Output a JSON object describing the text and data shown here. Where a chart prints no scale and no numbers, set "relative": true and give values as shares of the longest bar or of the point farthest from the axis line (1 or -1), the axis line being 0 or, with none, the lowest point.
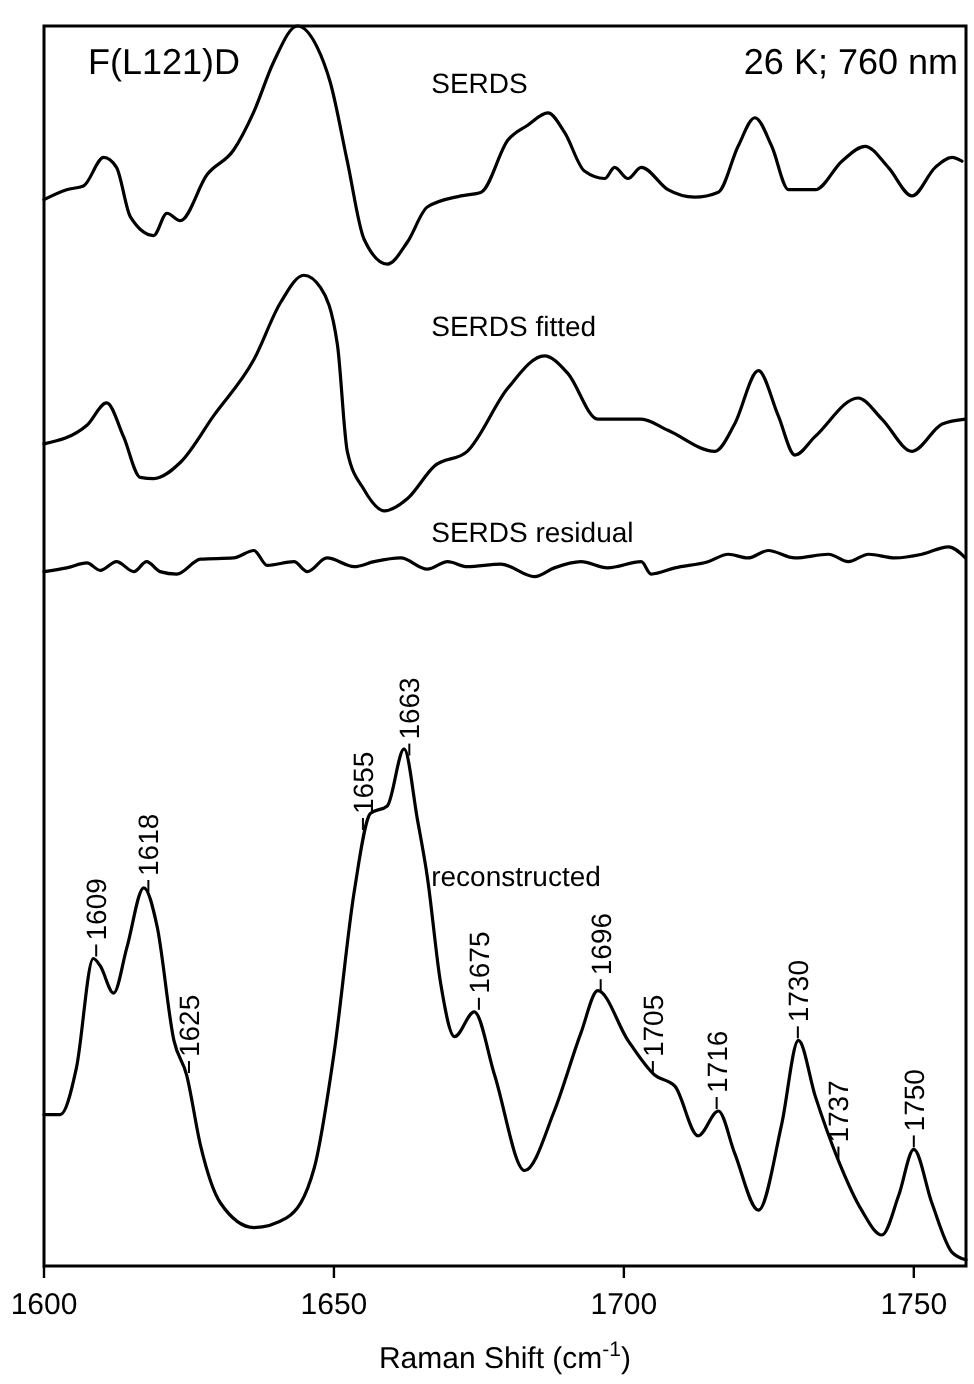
{
  "chart_data": {
    "type": "line",
    "relative": true,
    "xlabel": "Raman Shift (cm$^{-1}$)",
    "xlim": [
      1600,
      1759
    ],
    "xticks": [
      1600,
      1650,
      1700,
      1750
    ],
    "tick_labels": "x",
    "legend": false,
    "grid": false,
    "marker": "none",
    "line_style": "solid",
    "annotations": [
      "F(L121)D",
      "26 K; 760 nm",
      {
        "text": "1609",
        "x": 1609,
        "y": 0.248
      },
      {
        "text": "1618",
        "x": 1618,
        "y": 0.3
      },
      {
        "text": "1625",
        "x": 1625,
        "y": 0.154
      },
      {
        "text": "1655",
        "x": 1655,
        "y": 0.35
      },
      {
        "text": "1663",
        "x": 1663,
        "y": 0.41
      },
      {
        "text": "1675",
        "x": 1675,
        "y": 0.205
      },
      {
        "text": "1696",
        "x": 1696,
        "y": 0.22
      },
      {
        "text": "1705",
        "x": 1705,
        "y": 0.154
      },
      {
        "text": "1716",
        "x": 1716,
        "y": 0.125
      },
      {
        "text": "1730",
        "x": 1730,
        "y": 0.182
      },
      {
        "text": "1737",
        "x": 1737,
        "y": 0.085
      },
      {
        "text": "1750",
        "x": 1750,
        "y": 0.094
      }
    ],
    "series": [
      {
        "name": "SERDS",
        "color": "#000000",
        "x": [
          1600,
          1603.9,
          1606.8,
          1610.3,
          1612.5,
          1614.9,
          1618.9,
          1621.2,
          1623.5,
          1628.1,
          1632.7,
          1636.2,
          1639.6,
          1643.7,
          1647.1,
          1649.4,
          1652.3,
          1655.2,
          1659.2,
          1662.7,
          1666.1,
          1671.9,
          1675.4,
          1680,
          1683.4,
          1686.9,
          1689.8,
          1693.2,
          1696.7,
          1698.4,
          1700.7,
          1703,
          1707.6,
          1712.2,
          1716.3,
          1719.7,
          1722.6,
          1725.5,
          1728.4,
          1733,
          1737.6,
          1741.6,
          1745.6,
          1749.7,
          1753.7,
          1756.6,
          1758.3
        ],
        "values": [
          0.86,
          0.868,
          0.871,
          0.894,
          0.886,
          0.846,
          0.831,
          0.849,
          0.843,
          0.88,
          0.9,
          0.931,
          0.971,
          1,
          0.983,
          0.954,
          0.891,
          0.828,
          0.808,
          0.826,
          0.854,
          0.863,
          0.866,
          0.908,
          0.92,
          0.93,
          0.914,
          0.883,
          0.877,
          0.886,
          0.877,
          0.886,
          0.868,
          0.862,
          0.866,
          0.903,
          0.926,
          0.903,
          0.868,
          0.868,
          0.891,
          0.903,
          0.886,
          0.863,
          0.886,
          0.894,
          0.891
        ]
      },
      {
        "name": "SERDS fitted",
        "color": "#000000",
        "x": [
          1600,
          1607.4,
          1610.8,
          1613.7,
          1616.6,
          1618.9,
          1623.5,
          1629.3,
          1636.2,
          1640.8,
          1644.8,
          1647.7,
          1650.6,
          1652.3,
          1655.2,
          1658.7,
          1662.7,
          1667.3,
          1673,
          1680,
          1686.3,
          1690.3,
          1695.5,
          1703,
          1707.6,
          1715.7,
          1719.1,
          1723.2,
          1726.6,
          1729.5,
          1733,
          1740.4,
          1744.5,
          1749.7,
          1754.9,
          1758.9
        ],
        "values": [
          0.663,
          0.678,
          0.696,
          0.669,
          0.636,
          0.635,
          0.648,
          0.686,
          0.731,
          0.777,
          0.799,
          0.789,
          0.743,
          0.657,
          0.626,
          0.609,
          0.619,
          0.645,
          0.657,
          0.708,
          0.734,
          0.72,
          0.683,
          0.683,
          0.674,
          0.657,
          0.679,
          0.722,
          0.686,
          0.654,
          0.669,
          0.7,
          0.683,
          0.657,
          0.679,
          0.683
        ]
      },
      {
        "name": "SERDS residual",
        "color": "#000000",
        "x": [
          1600,
          1603.9,
          1607.4,
          1609.7,
          1612.5,
          1615.5,
          1617.7,
          1620,
          1622.9,
          1627,
          1632.7,
          1636.2,
          1638.5,
          1643.1,
          1645.4,
          1648.8,
          1653.5,
          1656.9,
          1661.5,
          1666.1,
          1669.6,
          1673,
          1678.8,
          1684.6,
          1688,
          1692.6,
          1697.2,
          1703,
          1704.7,
          1708.8,
          1714.5,
          1718,
          1721.4,
          1724.9,
          1729.5,
          1735.3,
          1738.7,
          1742.2,
          1746.8,
          1751.4,
          1756,
          1758.9
        ],
        "values": [
          0.56,
          0.563,
          0.567,
          0.561,
          0.568,
          0.56,
          0.568,
          0.56,
          0.558,
          0.57,
          0.571,
          0.577,
          0.565,
          0.568,
          0.56,
          0.571,
          0.564,
          0.568,
          0.571,
          0.562,
          0.568,
          0.564,
          0.566,
          0.556,
          0.563,
          0.568,
          0.563,
          0.568,
          0.558,
          0.563,
          0.568,
          0.574,
          0.571,
          0.577,
          0.571,
          0.574,
          0.568,
          0.574,
          0.571,
          0.574,
          0.58,
          0.571
        ]
      },
      {
        "name": "reconstructed",
        "color": "#000000",
        "x": [
          1600,
          1602.8,
          1605.6,
          1608.5,
          1609.7,
          1612,
          1614.3,
          1617.2,
          1619.5,
          1622.4,
          1624.6,
          1627,
          1630.4,
          1636.2,
          1641.9,
          1646.6,
          1650,
          1653.5,
          1656.3,
          1659.2,
          1662.1,
          1664.4,
          1666.1,
          1668.4,
          1670.8,
          1674.2,
          1677.7,
          1682.9,
          1688,
          1692.6,
          1695.5,
          1700.7,
          1705.3,
          1708.8,
          1712.8,
          1716.3,
          1719.1,
          1723.2,
          1727.2,
          1730.1,
          1733,
          1737,
          1741,
          1744.5,
          1747.4,
          1750,
          1753.1,
          1756.6,
          1759
        ],
        "values": [
          0.122,
          0.122,
          0.16,
          0.248,
          0.242,
          0.22,
          0.257,
          0.305,
          0.274,
          0.182,
          0.154,
          0.097,
          0.051,
          0.031,
          0.039,
          0.079,
          0.171,
          0.302,
          0.365,
          0.371,
          0.417,
          0.36,
          0.314,
          0.228,
          0.185,
          0.205,
          0.154,
          0.077,
          0.125,
          0.188,
          0.222,
          0.182,
          0.154,
          0.145,
          0.105,
          0.125,
          0.091,
          0.045,
          0.114,
          0.182,
          0.137,
          0.085,
          0.045,
          0.025,
          0.057,
          0.094,
          0.051,
          0.011,
          0.005
        ]
      }
    ]
  }
}
